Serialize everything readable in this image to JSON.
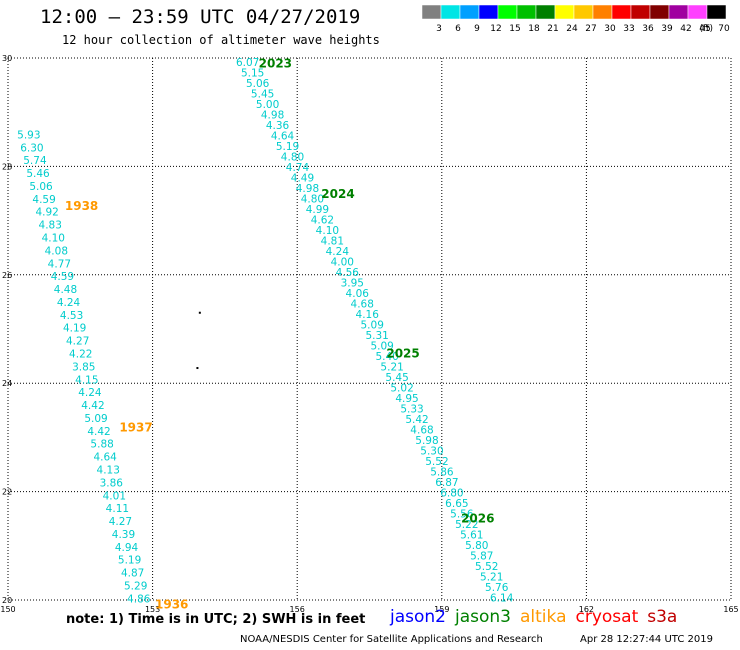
{
  "header": {
    "title": "12:00 – 23:59 UTC 04/27/2019",
    "subtitle": "12 hour collection of altimeter wave heights"
  },
  "colorbar": {
    "unit": "(ft)",
    "bins": [
      {
        "label": "3",
        "color": "#808080"
      },
      {
        "label": "6",
        "color": "#00e5e5"
      },
      {
        "label": "9",
        "color": "#00a0ff"
      },
      {
        "label": "12",
        "color": "#0000ff"
      },
      {
        "label": "15",
        "color": "#00ff00"
      },
      {
        "label": "18",
        "color": "#00c000"
      },
      {
        "label": "21",
        "color": "#008000"
      },
      {
        "label": "24",
        "color": "#ffff00"
      },
      {
        "label": "27",
        "color": "#ffc800"
      },
      {
        "label": "30",
        "color": "#ff8000"
      },
      {
        "label": "33",
        "color": "#ff0000"
      },
      {
        "label": "36",
        "color": "#c00000"
      },
      {
        "label": "39",
        "color": "#800000"
      },
      {
        "label": "42",
        "color": "#a000a0"
      },
      {
        "label": "45",
        "color": "#ff40ff"
      },
      {
        "label": "70",
        "color": "#000000"
      }
    ]
  },
  "map": {
    "lon_range": [
      150,
      165
    ],
    "lat_range": [
      20,
      30
    ],
    "lon_ticks": [
      "150",
      "153",
      "156",
      "159",
      "162",
      "165"
    ],
    "lat_ticks": [
      {
        "value": 30,
        "label": "30"
      },
      {
        "value": 28,
        "label": "28"
      },
      {
        "value": 26,
        "label": "26"
      },
      {
        "value": 24,
        "label": "24"
      },
      {
        "value": 22,
        "label": "22"
      },
      {
        "value": 20,
        "label": "20"
      }
    ],
    "islands": [
      {
        "lon": 153.98,
        "lat": 25.3
      },
      {
        "lon": 153.93,
        "lat": 24.28
      }
    ],
    "tracks": [
      {
        "values": [
          "5.93",
          "6.30",
          "5.74",
          "5.46",
          "5.06",
          "4.59",
          "4.92",
          "4.83",
          "4.10",
          "4.08",
          "4.77",
          "4.59",
          "4.48",
          "4.24",
          "4.53",
          "4.19",
          "4.27",
          "4.22",
          "3.85",
          "4.15",
          "4.24",
          "4.42",
          "5.09",
          "4.42",
          "5.88",
          "4.64",
          "4.13",
          "3.86",
          "4.01",
          "4.11",
          "4.27",
          "4.39",
          "4.94",
          "5.19",
          "4.87",
          "5.29",
          "4.86"
        ],
        "color": "#00cccc",
        "lon_start": 150.19,
        "lat_start": 28.59,
        "lon_end": 152.47,
        "lat_end": 20.03
      },
      {
        "values": [
          "6.07",
          "5.15",
          "5.06",
          "5.45",
          "5.00",
          "4.98",
          "4.36",
          "4.64",
          "5.19",
          "4.80",
          "4.74",
          "4.49",
          "4.98",
          "4.80",
          "4.99",
          "4.62",
          "4.10",
          "4.81",
          "4.24",
          "4.00",
          "4.56",
          "3.95",
          "4.06",
          "4.68",
          "4.16",
          "5.09",
          "5.31",
          "5.09",
          "5.40",
          "5.21",
          "5.45",
          "5.02",
          "4.95",
          "5.33",
          "5.42",
          "4.68",
          "5.98",
          "5.30",
          "5.52",
          "5.86",
          "6.87",
          "6.80",
          "6.65",
          "5.56",
          "5.22",
          "5.61",
          "5.80",
          "5.87",
          "5.52",
          "5.21",
          "5.76",
          "6.14"
        ],
        "color": "#00cccc",
        "lon_start": 154.73,
        "lat_start": 29.93,
        "lon_end": 160.0,
        "lat_end": 20.05
      }
    ],
    "pass_labels": [
      {
        "text": "2023",
        "color": "#008000",
        "lon": 155.2,
        "lat": 29.92
      },
      {
        "text": "2024",
        "color": "#008000",
        "lon": 156.5,
        "lat": 27.51
      },
      {
        "text": "2025",
        "color": "#008000",
        "lon": 157.85,
        "lat": 24.57
      },
      {
        "text": "2026",
        "color": "#008000",
        "lon": 159.4,
        "lat": 21.52
      },
      {
        "text": "1938",
        "color": "#ff9900",
        "lon": 151.18,
        "lat": 27.29
      },
      {
        "text": "1937",
        "color": "#ff9900",
        "lon": 152.31,
        "lat": 23.2
      },
      {
        "text": "1936",
        "color": "#ff9900",
        "lon": 153.05,
        "lat": 19.94
      }
    ]
  },
  "footer": {
    "note": "note:  1) Time is in UTC;  2) SWH is in feet",
    "satellites": [
      {
        "name": "jason2",
        "color": "#0000ff"
      },
      {
        "name": "jason3",
        "color": "#008000"
      },
      {
        "name": "altika",
        "color": "#ff9900"
      },
      {
        "name": "cryosat",
        "color": "#ff0000"
      },
      {
        "name": "s3a",
        "color": "#c00000"
      }
    ],
    "credit": "NOAA/NESDIS Center for Satellite Applications and Research",
    "timestamp": "Apr 28 12:27:44 UTC 2019"
  }
}
